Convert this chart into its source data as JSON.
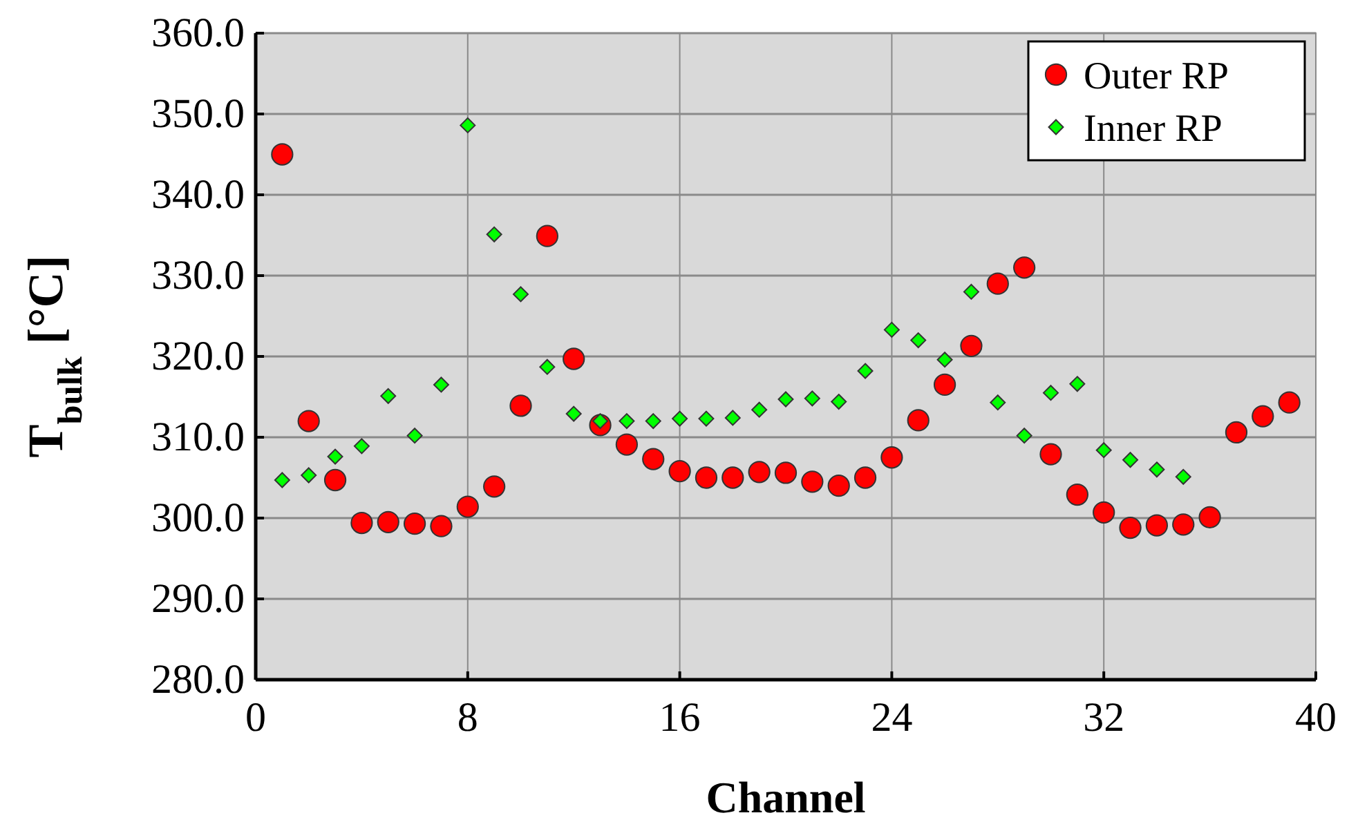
{
  "chart_data": {
    "type": "scatter",
    "xlabel": "Channel",
    "ylabel": "T$_{bulk}$ [°C]",
    "xlim": [
      0,
      40
    ],
    "xticks": [
      0,
      8,
      16,
      24,
      32,
      40
    ],
    "ylim": [
      280,
      360
    ],
    "yticks": [
      {
        "value": 280,
        "label": "280.0"
      },
      {
        "value": 290,
        "label": "290.0"
      },
      {
        "value": 300,
        "label": "300.0"
      },
      {
        "value": 310,
        "label": "310.0"
      },
      {
        "value": 320,
        "label": "320.0"
      },
      {
        "value": 330,
        "label": "330.0"
      },
      {
        "value": 340,
        "label": "340.0"
      },
      {
        "value": 350,
        "label": "350.0"
      },
      {
        "value": 360,
        "label": "360.0"
      }
    ],
    "grid": true,
    "legend": "top right",
    "series": [
      {
        "name": "Outer RP",
        "color": "#ff0000",
        "marker": "circle",
        "x": [
          1,
          2,
          3,
          4,
          5,
          6,
          7,
          8,
          9,
          10,
          11,
          12,
          13,
          14,
          15,
          16,
          17,
          18,
          19,
          20,
          21,
          22,
          23,
          24,
          25,
          26,
          27,
          28,
          29,
          30,
          31,
          32,
          33,
          34,
          35,
          36,
          37,
          38,
          39
        ],
        "values": [
          345.0,
          312.0,
          304.7,
          299.4,
          299.5,
          299.3,
          299.0,
          301.4,
          303.9,
          313.9,
          334.9,
          319.7,
          311.5,
          309.1,
          307.3,
          305.8,
          305.0,
          305.0,
          305.7,
          305.6,
          304.5,
          304.0,
          305.0,
          307.5,
          312.1,
          316.5,
          321.3,
          329.0,
          331.0,
          307.9,
          302.9,
          300.7,
          298.8,
          299.1,
          299.2,
          300.1,
          310.6,
          312.6,
          314.3
        ]
      },
      {
        "name": "Inner RP",
        "color": "#00ff00",
        "marker": "diamond",
        "x": [
          1,
          2,
          3,
          4,
          5,
          6,
          7,
          8,
          9,
          10,
          11,
          12,
          13,
          14,
          15,
          16,
          17,
          18,
          19,
          20,
          21,
          22,
          23,
          24,
          25,
          26,
          27,
          28,
          29,
          30,
          31,
          32,
          33,
          34,
          35
        ],
        "values": [
          304.7,
          305.3,
          307.6,
          308.9,
          315.1,
          310.2,
          316.5,
          348.6,
          335.1,
          327.7,
          318.7,
          312.9,
          312.0,
          312.0,
          312.0,
          312.3,
          312.3,
          312.4,
          313.4,
          314.7,
          314.8,
          314.4,
          318.2,
          323.3,
          322.0,
          319.6,
          328.0,
          314.3,
          310.2,
          315.5,
          316.6,
          308.4,
          307.2,
          306.0,
          305.1
        ]
      }
    ]
  }
}
